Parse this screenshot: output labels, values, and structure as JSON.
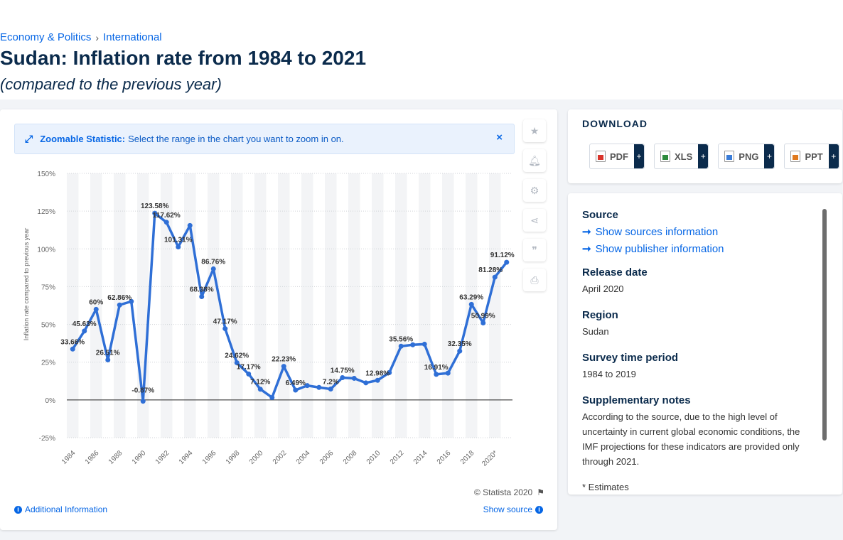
{
  "breadcrumb": {
    "items": [
      "Economy & Politics",
      "International"
    ],
    "separator": "›"
  },
  "title": "Sudan: Inflation rate from 1984 to 2021",
  "subtitle": "(compared to the previous year)",
  "zoom_banner": {
    "title": "Zoomable Statistic:",
    "text": "Select the range in the chart you want to zoom in on.",
    "close": "×",
    "icon": "expand-icon"
  },
  "side_tools": [
    "star-icon",
    "bell-icon",
    "gear-icon",
    "share-icon",
    "quote-icon",
    "print-icon"
  ],
  "copyright": "© Statista 2020",
  "additional_info": "Additional Information",
  "show_source": "Show source",
  "download": {
    "title": "DOWNLOAD",
    "buttons": [
      {
        "label": "PDF",
        "color": "#d9342b"
      },
      {
        "label": "XLS",
        "color": "#2e8b3d"
      },
      {
        "label": "PNG",
        "color": "#3b7dd8"
      },
      {
        "label": "PPT",
        "color": "#e07a1f"
      }
    ],
    "plus": "+"
  },
  "info": {
    "source_label": "Source",
    "source_link": "Show sources information",
    "publisher_link": "Show publisher information",
    "release_label": "Release date",
    "release_value": "April 2020",
    "region_label": "Region",
    "region_value": "Sudan",
    "survey_label": "Survey time period",
    "survey_value": "1984 to 2019",
    "notes_label": "Supplementary notes",
    "notes_value": "According to the source, due to the high level of uncertainty in current global economic conditions, the IMF projections for these indicators are provided only through 2021.",
    "footnote": "* Estimates"
  },
  "chart_data": {
    "type": "line",
    "ylabel": "Inflation rate compared to previous year",
    "ylim": [
      -25,
      150
    ],
    "y_ticks": [
      "-25%",
      "0%",
      "25%",
      "50%",
      "75%",
      "100%",
      "125%",
      "150%"
    ],
    "y_tick_values": [
      -25,
      0,
      25,
      50,
      75,
      100,
      125,
      150
    ],
    "x_tick_labels": [
      "1984",
      "1986",
      "1988",
      "1990",
      "1992",
      "1994",
      "1996",
      "1998",
      "2000",
      "2002",
      "2004",
      "2006",
      "2008",
      "2010",
      "2012",
      "2014",
      "2016",
      "2018",
      "2020*"
    ],
    "x_tick_values": [
      1984,
      1986,
      1988,
      1990,
      1992,
      1994,
      1996,
      1998,
      2000,
      2002,
      2004,
      2006,
      2008,
      2010,
      2012,
      2014,
      2016,
      2018,
      2020
    ],
    "color": "#2f6fd6",
    "grid": true,
    "x": [
      1984,
      1985,
      1986,
      1987,
      1988,
      1989,
      1990,
      1991,
      1992,
      1993,
      1994,
      1995,
      1996,
      1997,
      1998,
      1999,
      2000,
      2001,
      2002,
      2003,
      2004,
      2005,
      2006,
      2007,
      2008,
      2009,
      2010,
      2011,
      2012,
      2013,
      2014,
      2015,
      2016,
      2017,
      2018,
      2019,
      2020,
      2021
    ],
    "values": [
      33.66,
      45.63,
      60,
      26.51,
      62.86,
      65.2,
      -0.87,
      123.58,
      117.62,
      101.31,
      115.5,
      68.38,
      86.76,
      47.17,
      24.62,
      17.17,
      7.12,
      1.6,
      22.23,
      6.49,
      9.5,
      8.3,
      7.2,
      14.75,
      14.3,
      11.3,
      12.98,
      18.1,
      35.56,
      36.5,
      36.9,
      16.91,
      17.75,
      32.35,
      63.29,
      50.99,
      81.28,
      91.12
    ],
    "data_labels": [
      {
        "x": 1984,
        "text": "33.66%"
      },
      {
        "x": 1985,
        "text": "45.63%"
      },
      {
        "x": 1986,
        "text": "60%"
      },
      {
        "x": 1987,
        "text": "26.51%"
      },
      {
        "x": 1988,
        "text": "62.86%"
      },
      {
        "x": 1990,
        "text": "-0.87%"
      },
      {
        "x": 1991,
        "text": "123.58%"
      },
      {
        "x": 1992,
        "text": "117.62%"
      },
      {
        "x": 1993,
        "text": "101.31%"
      },
      {
        "x": 1995,
        "text": "68.38%"
      },
      {
        "x": 1996,
        "text": "86.76%"
      },
      {
        "x": 1997,
        "text": "47.17%"
      },
      {
        "x": 1998,
        "text": "24.62%"
      },
      {
        "x": 1999,
        "text": "17.17%"
      },
      {
        "x": 2000,
        "text": "7.12%"
      },
      {
        "x": 2002,
        "text": "22.23%"
      },
      {
        "x": 2003,
        "text": "6.49%"
      },
      {
        "x": 2006,
        "text": "7.2%"
      },
      {
        "x": 2007,
        "text": "14.75%"
      },
      {
        "x": 2010,
        "text": "12.98%"
      },
      {
        "x": 2012,
        "text": "35.56%"
      },
      {
        "x": 2015,
        "text": "16.91%"
      },
      {
        "x": 2017,
        "text": "32.35%"
      },
      {
        "x": 2018,
        "text": "63.29%"
      },
      {
        "x": 2019,
        "text": "50.99%"
      },
      {
        "x": 2020,
        "text": "81.28%"
      },
      {
        "x": 2021,
        "text": "91.12%"
      }
    ]
  }
}
